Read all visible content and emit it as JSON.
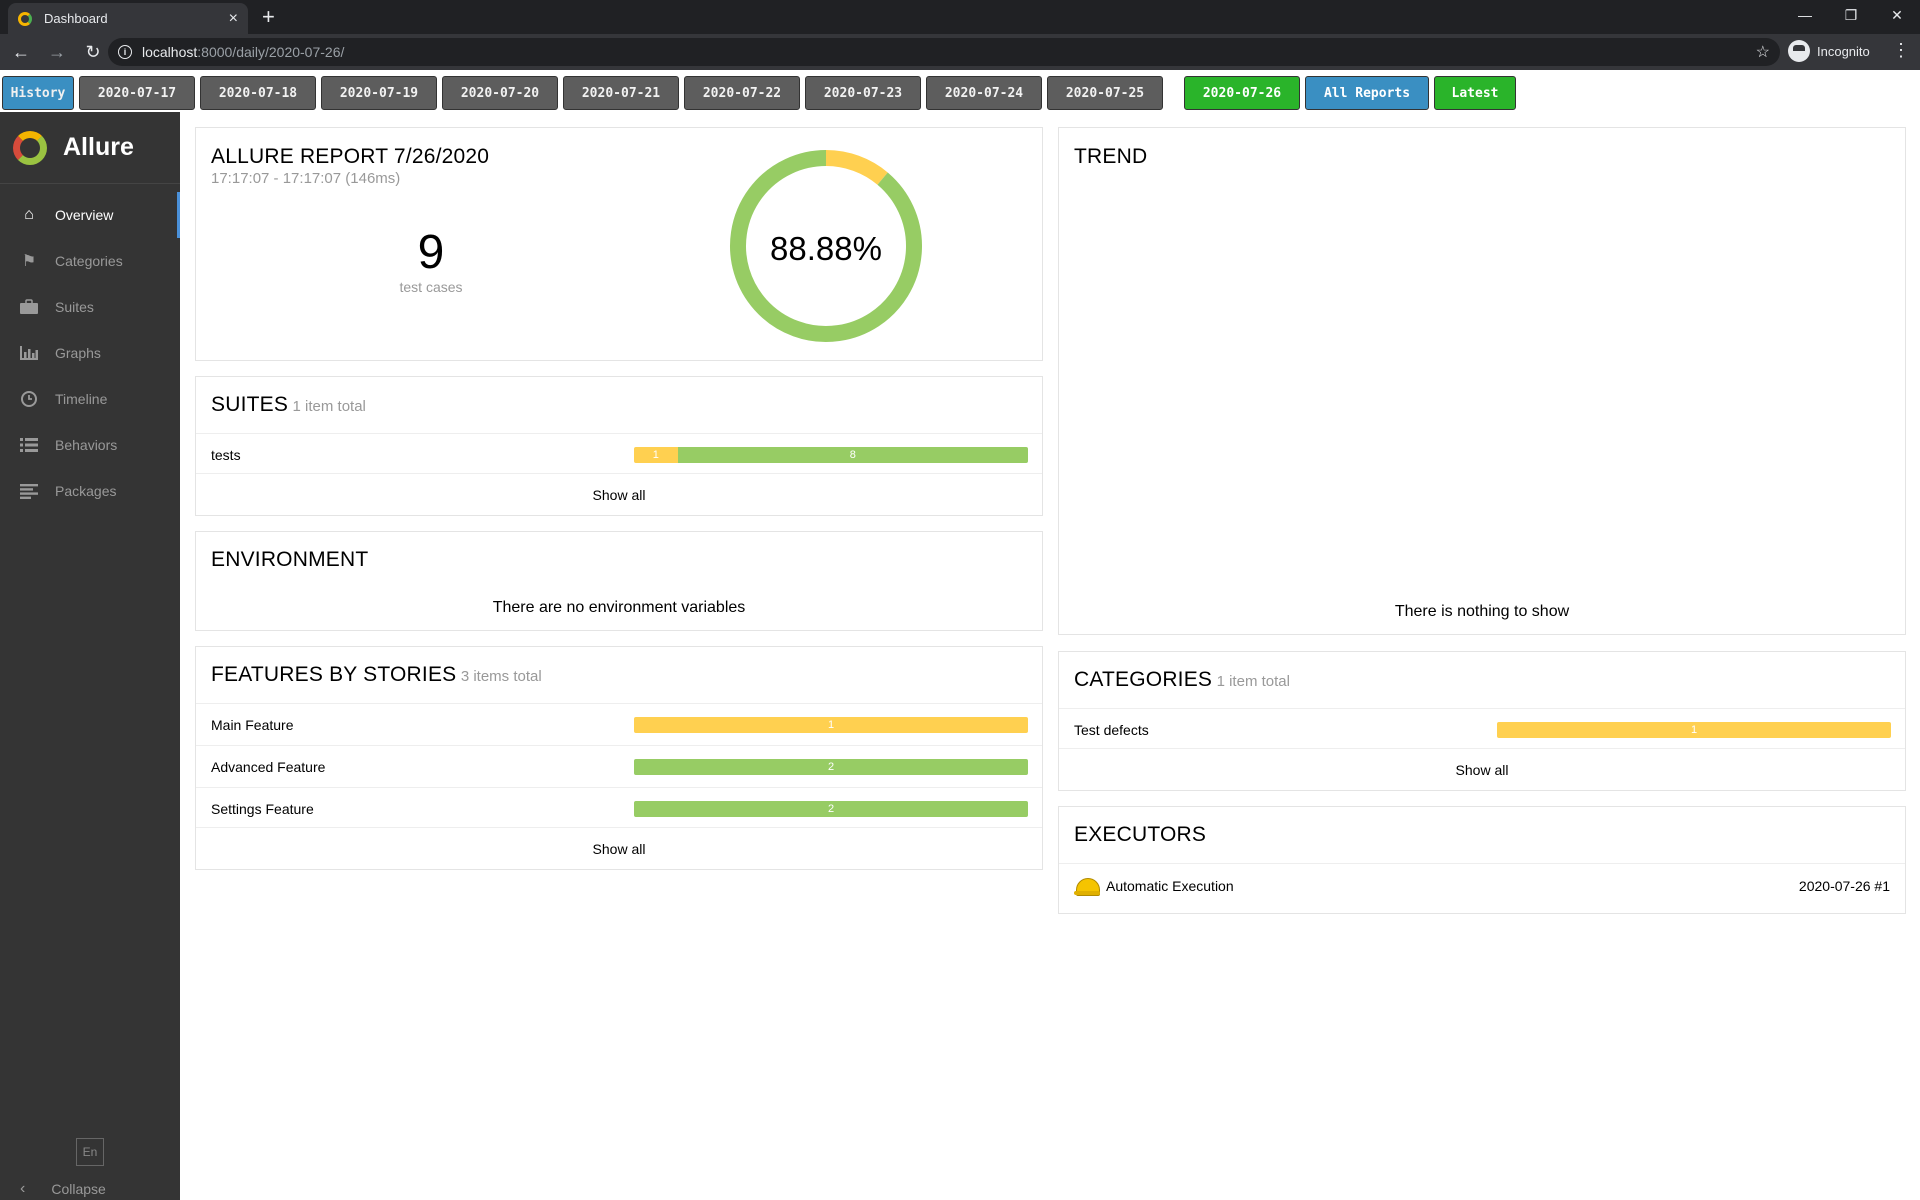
{
  "browser": {
    "tab_title": "Dashboard",
    "tab_close": "×",
    "new_tab": "+",
    "url_host": "localhost",
    "url_path": ":8000/daily/2020-07-26/",
    "profile_label": "Incognito"
  },
  "history_bar": {
    "history_label": "History",
    "dates": [
      "2020-07-17",
      "2020-07-18",
      "2020-07-19",
      "2020-07-20",
      "2020-07-21",
      "2020-07-22",
      "2020-07-23",
      "2020-07-24",
      "2020-07-25",
      "2020-07-26"
    ],
    "active_date": "2020-07-26",
    "all_reports_label": "All Reports",
    "latest_label": "Latest"
  },
  "sidebar": {
    "brand": "Allure",
    "items": [
      {
        "label": "Overview",
        "icon": "home-icon",
        "active": true
      },
      {
        "label": "Categories",
        "icon": "flag-icon",
        "active": false
      },
      {
        "label": "Suites",
        "icon": "briefcase-icon",
        "active": false
      },
      {
        "label": "Graphs",
        "icon": "bar-chart-icon",
        "active": false
      },
      {
        "label": "Timeline",
        "icon": "clock-icon",
        "active": false
      },
      {
        "label": "Behaviors",
        "icon": "list-icon",
        "active": false
      },
      {
        "label": "Packages",
        "icon": "align-left-icon",
        "active": false
      }
    ],
    "language": "En",
    "collapse_label": "Collapse"
  },
  "summary": {
    "title": "ALLURE REPORT 7/26/2020",
    "time_range": "17:17:07 - 17:17:07 (146ms)",
    "test_count": "9",
    "test_count_label": "test cases",
    "pass_rate": "88.88%",
    "donut_fractions": {
      "broken": 0.1112,
      "passed": 0.8888
    }
  },
  "suites": {
    "title": "SUITES",
    "subtitle": "1 item total",
    "rows": [
      {
        "label": "tests",
        "broken": 1,
        "passed": 8
      }
    ],
    "show_all": "Show all"
  },
  "environment": {
    "title": "ENVIRONMENT",
    "empty": "There are no environment variables"
  },
  "features": {
    "title": "FEATURES BY STORIES",
    "subtitle": "3 items total",
    "rows": [
      {
        "label": "Main Feature",
        "status": "broken",
        "count": 1
      },
      {
        "label": "Advanced Feature",
        "status": "passed",
        "count": 2
      },
      {
        "label": "Settings Feature",
        "status": "passed",
        "count": 2
      }
    ],
    "show_all": "Show all"
  },
  "trend": {
    "title": "TREND",
    "empty": "There is nothing to show"
  },
  "categories": {
    "title": "CATEGORIES",
    "subtitle": "1 item total",
    "rows": [
      {
        "label": "Test defects",
        "status": "broken",
        "count": 1
      }
    ],
    "show_all": "Show all"
  },
  "executors": {
    "title": "EXECUTORS",
    "rows": [
      {
        "name": "Automatic Execution",
        "build": "2020-07-26 #1",
        "icon": "hard-hat-icon"
      }
    ]
  },
  "colors": {
    "broken": "#ffd050",
    "passed": "#97cc64",
    "sidebar_bg": "#343434",
    "history_blue": "#3a8fc2",
    "history_green": "#2ab42a"
  }
}
